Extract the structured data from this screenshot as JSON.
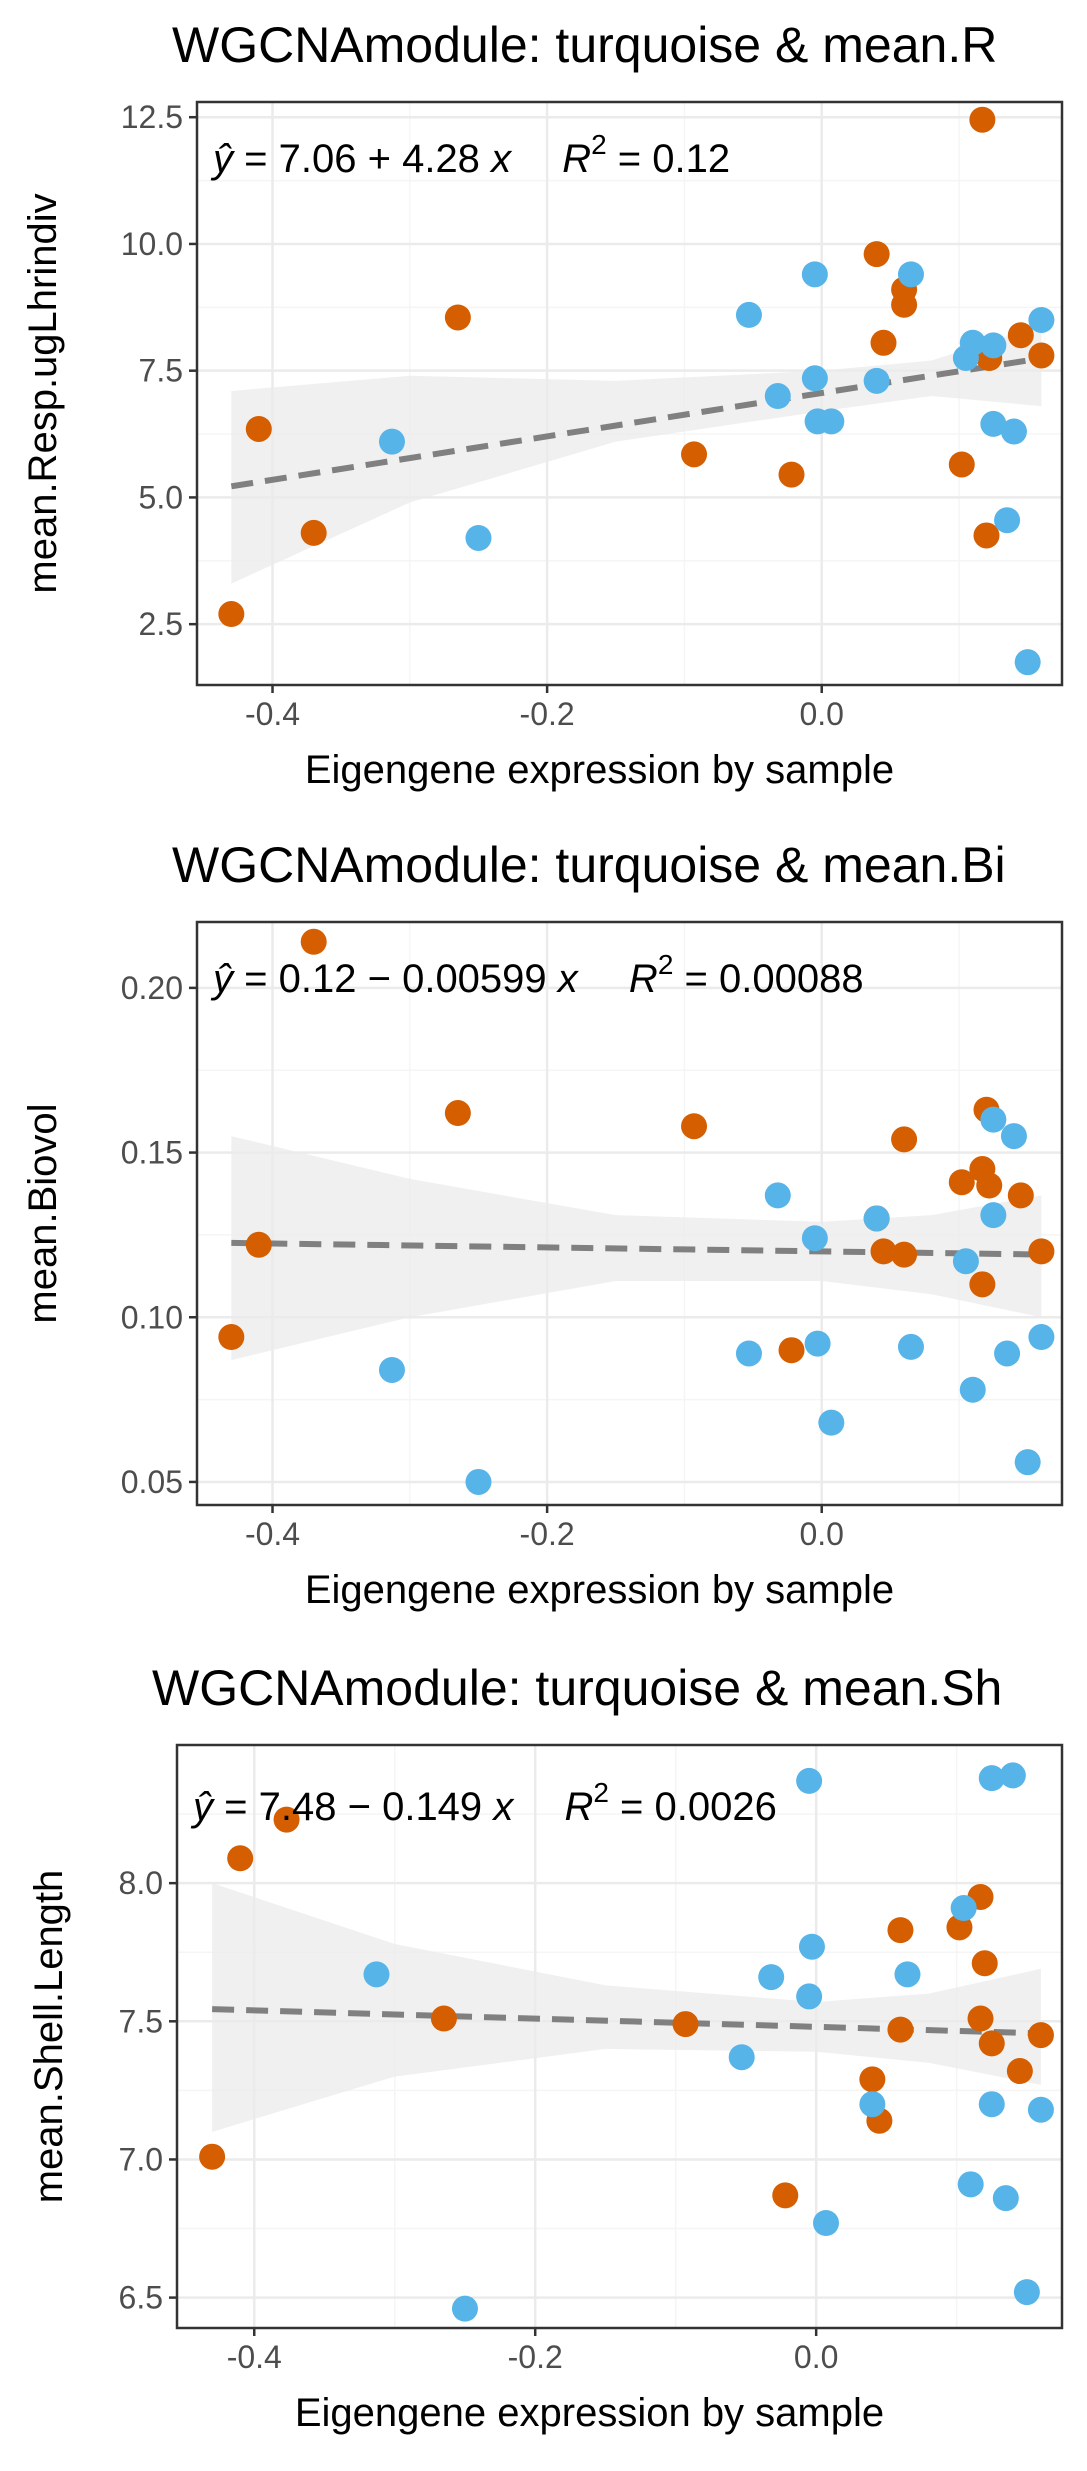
{
  "colors": {
    "orange": "#d55e00",
    "blue": "#56b4e9",
    "fit_line": "#808080",
    "ribbon": "#ebebeb",
    "grid_major": "#ebebeb",
    "grid_minor": "#f5f5f5",
    "panel_border": "#333333",
    "tick_text": "#4d4d4d"
  },
  "panels": [
    {
      "title": "WGCNAmodule: turquoise & mean.R",
      "equation": {
        "intercept": "7.06",
        "op": "+",
        "slope": "4.28",
        "r2": "0.12"
      }
    },
    {
      "title": "WGCNAmodule: turquoise & mean.Bi",
      "equation": {
        "intercept": "0.12",
        "op": "−",
        "slope": "0.00599",
        "r2": "0.00088"
      }
    },
    {
      "title": "WGCNAmodule: turquoise & mean.Sh",
      "equation": {
        "intercept": "7.48",
        "op": "−",
        "slope": "0.149",
        "r2": "0.0026"
      }
    }
  ],
  "chart_data": [
    {
      "type": "scatter",
      "title": "WGCNAmodule: turquoise & mean.R",
      "xlabel": "Eigengene expression by sample",
      "ylabel": "mean.Resp.ugLhrindiv",
      "xlim": [
        -0.455,
        0.175
      ],
      "ylim": [
        1.3,
        12.8
      ],
      "x_ticks": [
        -0.4,
        -0.2,
        0.0
      ],
      "x_tick_labels": [
        "-0.4",
        "-0.2",
        "0.0"
      ],
      "y_ticks": [
        2.5,
        5.0,
        7.5,
        10.0,
        12.5
      ],
      "y_tick_labels": [
        "2.5",
        "5.0",
        "7.5",
        "10.0",
        "12.5"
      ],
      "grid": true,
      "fit": {
        "intercept": 7.06,
        "slope": 4.28,
        "r2": 0.12,
        "x_range": [
          -0.43,
          0.16
        ],
        "ribbon": [
          [
            -0.43,
            3.3,
            7.1
          ],
          [
            -0.3,
            4.9,
            7.4
          ],
          [
            -0.15,
            6.1,
            7.3
          ],
          [
            0.0,
            6.7,
            7.5
          ],
          [
            0.08,
            7.0,
            7.7
          ],
          [
            0.16,
            6.8,
            8.4
          ]
        ]
      },
      "series": [
        {
          "color": "orange",
          "points": [
            [
              -0.43,
              2.7
            ],
            [
              -0.41,
              6.35
            ],
            [
              -0.37,
              4.3
            ],
            [
              -0.265,
              8.55
            ],
            [
              -0.093,
              5.85
            ],
            [
              -0.022,
              5.45
            ],
            [
              0.04,
              9.8
            ],
            [
              0.045,
              8.05
            ],
            [
              0.06,
              9.1
            ],
            [
              0.06,
              8.8
            ],
            [
              0.102,
              5.65
            ],
            [
              0.117,
              12.45
            ],
            [
              0.12,
              4.25
            ],
            [
              0.122,
              7.75
            ],
            [
              0.145,
              8.2
            ],
            [
              0.16,
              7.8
            ]
          ]
        },
        {
          "color": "blue",
          "points": [
            [
              -0.313,
              6.1
            ],
            [
              -0.25,
              4.2
            ],
            [
              -0.053,
              8.6
            ],
            [
              -0.032,
              7.0
            ],
            [
              -0.005,
              9.4
            ],
            [
              -0.005,
              7.35
            ],
            [
              -0.003,
              6.5
            ],
            [
              0.007,
              6.5
            ],
            [
              0.04,
              7.3
            ],
            [
              0.065,
              9.4
            ],
            [
              0.105,
              7.75
            ],
            [
              0.11,
              8.05
            ],
            [
              0.125,
              8.0
            ],
            [
              0.125,
              6.45
            ],
            [
              0.135,
              4.55
            ],
            [
              0.14,
              6.3
            ],
            [
              0.15,
              1.75
            ],
            [
              0.16,
              8.5
            ]
          ]
        }
      ]
    },
    {
      "type": "scatter",
      "title": "WGCNAmodule: turquoise & mean.Bi",
      "xlabel": "Eigengene expression by sample",
      "ylabel": "mean.Biovol",
      "xlim": [
        -0.455,
        0.175
      ],
      "ylim": [
        0.043,
        0.22
      ],
      "x_ticks": [
        -0.4,
        -0.2,
        0.0
      ],
      "x_tick_labels": [
        "-0.4",
        "-0.2",
        "0.0"
      ],
      "y_ticks": [
        0.05,
        0.1,
        0.15,
        0.2
      ],
      "y_tick_labels": [
        "0.05",
        "0.10",
        "0.15",
        "0.20"
      ],
      "grid": true,
      "fit": {
        "intercept": 0.12,
        "slope": -0.00599,
        "r2": 0.00088,
        "x_range": [
          -0.43,
          0.16
        ],
        "ribbon": [
          [
            -0.43,
            0.087,
            0.155
          ],
          [
            -0.3,
            0.1,
            0.142
          ],
          [
            -0.15,
            0.111,
            0.131
          ],
          [
            0.0,
            0.111,
            0.129
          ],
          [
            0.08,
            0.107,
            0.131
          ],
          [
            0.16,
            0.1,
            0.137
          ]
        ]
      },
      "series": [
        {
          "color": "orange",
          "points": [
            [
              -0.43,
              0.094
            ],
            [
              -0.41,
              0.122
            ],
            [
              -0.37,
              0.214
            ],
            [
              -0.265,
              0.162
            ],
            [
              -0.093,
              0.158
            ],
            [
              -0.022,
              0.09
            ],
            [
              0.04,
              0.13
            ],
            [
              0.045,
              0.12
            ],
            [
              0.06,
              0.154
            ],
            [
              0.06,
              0.119
            ],
            [
              0.102,
              0.141
            ],
            [
              0.117,
              0.11
            ],
            [
              0.117,
              0.145
            ],
            [
              0.12,
              0.163
            ],
            [
              0.122,
              0.14
            ],
            [
              0.145,
              0.137
            ],
            [
              0.16,
              0.12
            ]
          ]
        },
        {
          "color": "blue",
          "points": [
            [
              -0.313,
              0.084
            ],
            [
              -0.25,
              0.05
            ],
            [
              -0.053,
              0.089
            ],
            [
              -0.032,
              0.137
            ],
            [
              -0.005,
              0.124
            ],
            [
              -0.003,
              0.092
            ],
            [
              0.007,
              0.068
            ],
            [
              0.04,
              0.13
            ],
            [
              0.065,
              0.091
            ],
            [
              0.105,
              0.117
            ],
            [
              0.11,
              0.078
            ],
            [
              0.125,
              0.16
            ],
            [
              0.125,
              0.131
            ],
            [
              0.135,
              0.089
            ],
            [
              0.14,
              0.155
            ],
            [
              0.15,
              0.056
            ],
            [
              0.16,
              0.094
            ]
          ]
        }
      ]
    },
    {
      "type": "scatter",
      "title": "WGCNAmodule: turquoise & mean.Sh",
      "xlabel": "Eigengene expression by sample",
      "ylabel": "mean.Shell.Length",
      "xlim": [
        -0.455,
        0.175
      ],
      "ylim": [
        6.39,
        8.5
      ],
      "x_ticks": [
        -0.4,
        -0.2,
        0.0
      ],
      "x_tick_labels": [
        "-0.4",
        "-0.2",
        "0.0"
      ],
      "y_ticks": [
        6.5,
        7.0,
        7.5,
        8.0
      ],
      "y_tick_labels": [
        "6.5",
        "7.0",
        "7.5",
        "8.0"
      ],
      "grid": true,
      "fit": {
        "intercept": 7.48,
        "slope": -0.149,
        "r2": 0.0026,
        "x_range": [
          -0.43,
          0.16
        ],
        "ribbon": [
          [
            -0.43,
            7.1,
            8.0
          ],
          [
            -0.3,
            7.3,
            7.78
          ],
          [
            -0.15,
            7.4,
            7.63
          ],
          [
            0.0,
            7.39,
            7.57
          ],
          [
            0.08,
            7.35,
            7.6
          ],
          [
            0.16,
            7.27,
            7.69
          ]
        ]
      },
      "series": [
        {
          "color": "orange",
          "points": [
            [
              -0.43,
              7.01
            ],
            [
              -0.41,
              8.09
            ],
            [
              -0.377,
              8.23
            ],
            [
              -0.265,
              7.51
            ],
            [
              -0.093,
              7.49
            ],
            [
              -0.022,
              6.87
            ],
            [
              0.04,
              7.29
            ],
            [
              0.045,
              7.14
            ],
            [
              0.06,
              7.83
            ],
            [
              0.06,
              7.47
            ],
            [
              0.102,
              7.84
            ],
            [
              0.117,
              7.95
            ],
            [
              0.117,
              7.51
            ],
            [
              0.12,
              7.71
            ],
            [
              0.125,
              7.42
            ],
            [
              0.145,
              7.32
            ],
            [
              0.16,
              7.45
            ]
          ]
        },
        {
          "color": "blue",
          "points": [
            [
              -0.313,
              7.67
            ],
            [
              -0.25,
              6.46
            ],
            [
              -0.053,
              7.37
            ],
            [
              -0.032,
              7.66
            ],
            [
              -0.005,
              8.37
            ],
            [
              -0.003,
              7.77
            ],
            [
              -0.005,
              7.59
            ],
            [
              0.007,
              6.77
            ],
            [
              0.04,
              7.2
            ],
            [
              0.065,
              7.67
            ],
            [
              0.105,
              7.91
            ],
            [
              0.11,
              6.91
            ],
            [
              0.125,
              8.38
            ],
            [
              0.125,
              7.2
            ],
            [
              0.135,
              6.86
            ],
            [
              0.14,
              8.39
            ],
            [
              0.15,
              6.52
            ],
            [
              0.16,
              7.18
            ]
          ]
        }
      ]
    }
  ]
}
